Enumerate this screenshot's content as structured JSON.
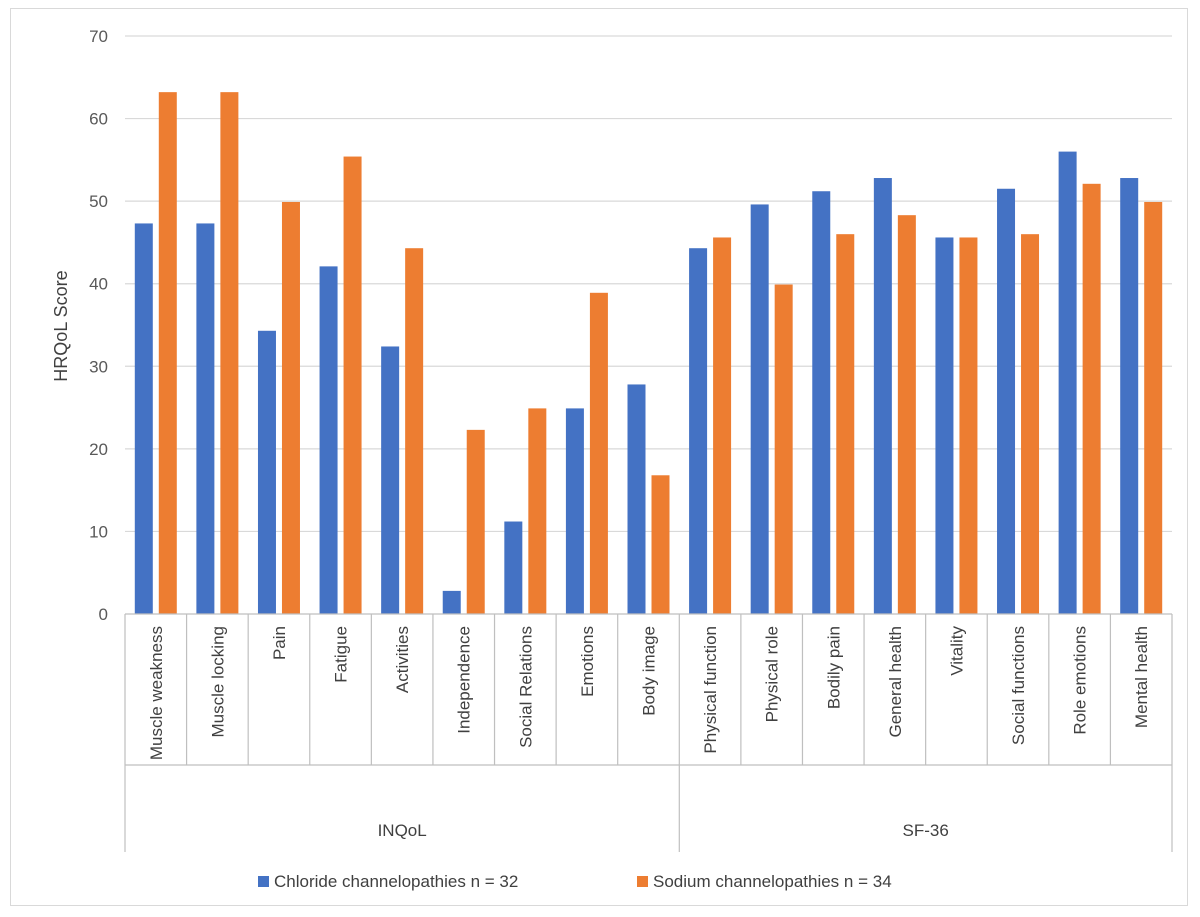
{
  "chart_data": {
    "type": "bar",
    "title": "",
    "xlabel": "",
    "ylabel": "HRQoL Score",
    "ylim": [
      0,
      70
    ],
    "yticks": [
      0,
      10,
      20,
      30,
      40,
      50,
      60,
      70
    ],
    "grid": true,
    "legend_position": "bottom",
    "categories": [
      "Muscle weakness",
      "Muscle locking",
      "Pain",
      "Fatigue",
      "Activities",
      "Independence",
      "Social Relations",
      "Emotions",
      "Body image",
      "Physical function",
      "Physical role",
      "Bodily pain",
      "General health",
      "Vitality",
      "Social functions",
      "Role emotions",
      "Mental health"
    ],
    "groups": [
      {
        "label": "INQoL",
        "count": 9
      },
      {
        "label": "SF-36",
        "count": 8
      }
    ],
    "series": [
      {
        "name": "Chloride channelopathies n = 32",
        "color": "#4472C4",
        "values": [
          47.3,
          47.3,
          34.3,
          42.1,
          32.4,
          2.8,
          11.2,
          24.9,
          27.8,
          44.3,
          49.6,
          51.2,
          52.8,
          45.6,
          51.5,
          56.0,
          52.8
        ]
      },
      {
        "name": "Sodium channelopathies n = 34",
        "color": "#ED7D31",
        "values": [
          63.2,
          63.2,
          49.9,
          55.4,
          44.3,
          22.3,
          24.9,
          38.9,
          16.8,
          45.6,
          39.9,
          46.0,
          48.3,
          45.6,
          46.0,
          52.1,
          49.9
        ]
      }
    ]
  }
}
